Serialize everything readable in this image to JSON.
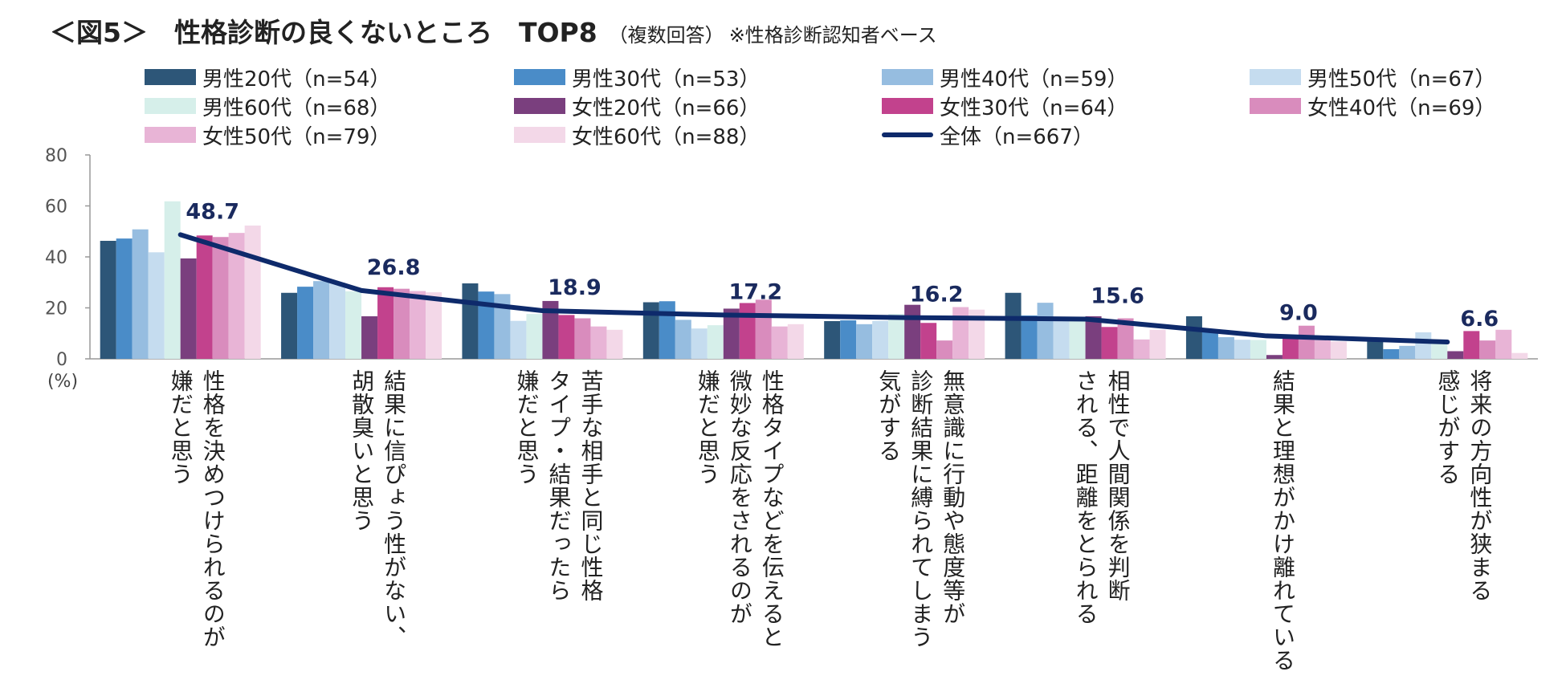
{
  "title": {
    "main": "＜図5＞　性格診断の良くないところ　TOP8",
    "sub": "（複数回答）",
    "note": "※性格診断認知者ベース"
  },
  "chart_data": {
    "type": "bar",
    "title": "性格診断の良くないところ TOP8",
    "yunit": "(%)",
    "ylim": [
      0,
      80
    ],
    "yticks": [
      "0",
      "20",
      "40",
      "60",
      "80"
    ],
    "categories": [
      "性格を決めつけられるのが\n嫌だと思う",
      "結果に信ぴょう性がない、\n胡散臭いと思う",
      "苦手な相手と同じ性格\nタイプ・結果だったら\n嫌だと思う",
      "性格タイプなどを伝えると\n微妙な反応をされるのが\n嫌だと思う",
      "無意識に行動や態度等が\n診断結果に縛られてしまう\n気がする",
      "相性で人間関係を判断\nされる、距離をとられる",
      "結果と理想がかけ離れている",
      "将来の方向性が狭まる\n感じがする"
    ],
    "series": [
      {
        "name": "男性20代（n=54）",
        "color": "#2d5678",
        "values": [
          46.3,
          25.9,
          29.6,
          22.2,
          14.8,
          25.9,
          16.7,
          7.4
        ]
      },
      {
        "name": "男性30代（n=53）",
        "color": "#4a8cc8",
        "values": [
          47.2,
          28.3,
          26.4,
          22.6,
          15.1,
          17.0,
          11.3,
          3.8
        ]
      },
      {
        "name": "男性40代（n=59）",
        "color": "#96bde0",
        "values": [
          50.8,
          30.5,
          25.4,
          15.3,
          13.6,
          22.0,
          8.5,
          5.1
        ]
      },
      {
        "name": "男性50代（n=67）",
        "color": "#c5dcef",
        "values": [
          41.8,
          29.9,
          14.9,
          11.9,
          14.9,
          14.9,
          7.5,
          10.4
        ]
      },
      {
        "name": "男性60代（n=68）",
        "color": "#d6efea",
        "values": [
          61.8,
          26.5,
          17.6,
          13.2,
          17.6,
          16.2,
          7.4,
          5.9
        ]
      },
      {
        "name": "女性20代（n=66）",
        "color": "#7a3f7e",
        "values": [
          39.4,
          16.7,
          22.7,
          19.7,
          21.2,
          16.7,
          1.5,
          3.0
        ]
      },
      {
        "name": "女性30代（n=64）",
        "color": "#c2428d",
        "values": [
          48.4,
          28.1,
          17.2,
          21.9,
          14.1,
          12.5,
          9.4,
          10.9
        ]
      },
      {
        "name": "女性40代（n=69）",
        "color": "#d98cbd",
        "values": [
          47.8,
          27.5,
          15.9,
          23.2,
          7.2,
          15.9,
          13.0,
          7.2
        ]
      },
      {
        "name": "女性50代（n=79）",
        "color": "#e8b4d6",
        "values": [
          49.4,
          26.6,
          12.7,
          12.7,
          20.3,
          7.6,
          7.6,
          11.4
        ]
      },
      {
        "name": "女性60代（n=88）",
        "color": "#f3d8e8",
        "values": [
          52.3,
          26.1,
          11.4,
          13.6,
          19.3,
          11.4,
          6.8,
          2.3
        ]
      }
    ],
    "total_line": {
      "name": "全体（n=667）",
      "color": "#0e2a6b",
      "values": [
        48.7,
        26.8,
        18.9,
        17.2,
        16.2,
        15.6,
        9.0,
        6.6
      ],
      "labels": [
        "48.7",
        "26.8",
        "18.9",
        "17.2",
        "16.2",
        "15.6",
        "9.0",
        "6.6"
      ]
    }
  }
}
